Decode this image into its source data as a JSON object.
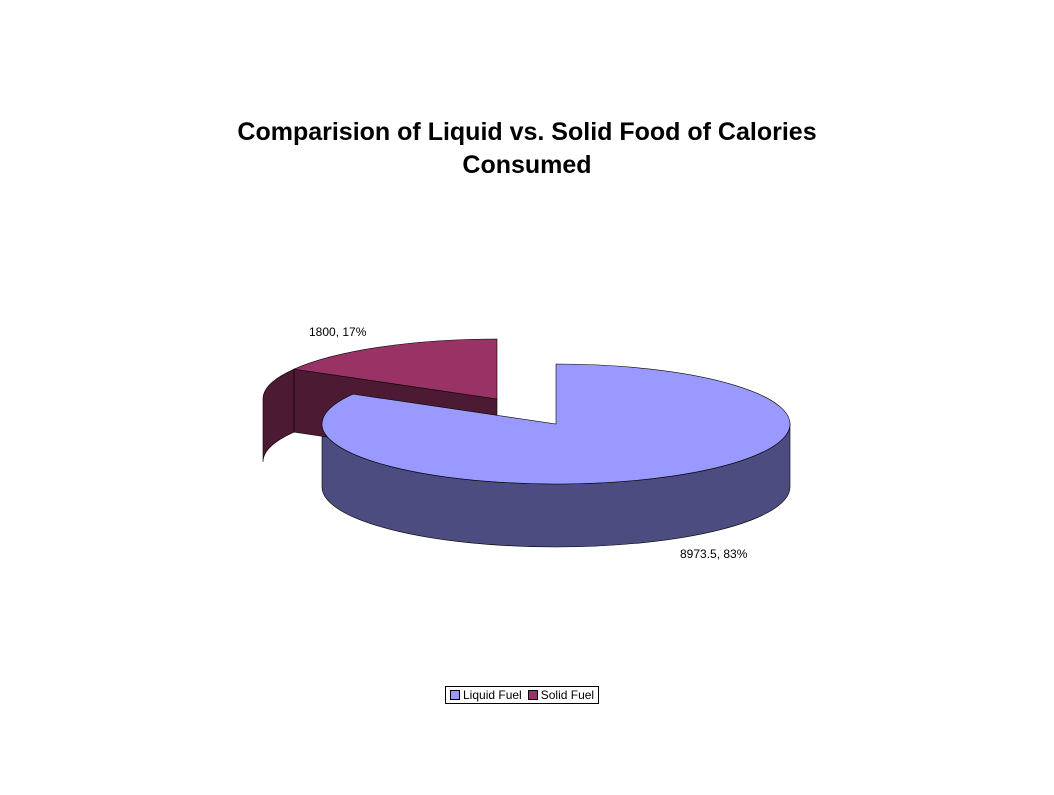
{
  "chart_data": {
    "type": "pie",
    "title": "Comparision of Liquid vs. Solid Food of Calories\nConsumed",
    "slices": [
      {
        "name": "Liquid Fuel",
        "value": 8973.5,
        "percent": 83,
        "label": "8973.5, 83%",
        "color": "#9999FF",
        "side_color": "#4C4C80"
      },
      {
        "name": "Solid Fuel",
        "value": 1800,
        "percent": 17,
        "label": "1800, 17%",
        "color": "#993366",
        "side_color": "#4D1A33"
      }
    ],
    "legend": {
      "placement": "bottom"
    },
    "exploded_slice": "Solid Fuel",
    "view": "3d"
  }
}
